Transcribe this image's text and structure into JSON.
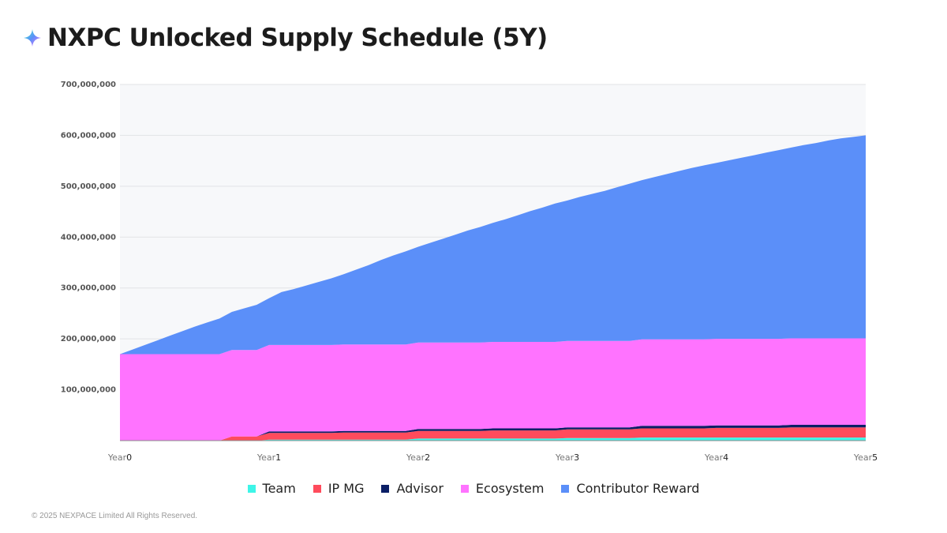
{
  "title": "NXPC Unlocked Supply Schedule (5Y)",
  "footer": "© 2025 NEXPACE Limited All Rights Reserved.",
  "chart_data": {
    "type": "area",
    "stacked": true,
    "title": "NXPC Unlocked Supply Schedule (5Y)",
    "xlabel": "",
    "ylabel": "",
    "xlim": [
      0,
      5
    ],
    "ylim": [
      0,
      700000000
    ],
    "grid": true,
    "legend_position": "bottom",
    "x_ticks": [
      {
        "prefix": "Year",
        "num": "0",
        "value": 0
      },
      {
        "prefix": "Year",
        "num": "1",
        "value": 1
      },
      {
        "prefix": "Year",
        "num": "2",
        "value": 2
      },
      {
        "prefix": "Year",
        "num": "3",
        "value": 3
      },
      {
        "prefix": "Year",
        "num": "4",
        "value": 4
      },
      {
        "prefix": "Year",
        "num": "5",
        "value": 5
      }
    ],
    "y_ticks": [
      {
        "label": "100,000,000",
        "value": 100000000
      },
      {
        "label": "200,000,000",
        "value": 200000000
      },
      {
        "label": "300,000,000",
        "value": 300000000
      },
      {
        "label": "400,000,000",
        "value": 400000000
      },
      {
        "label": "500,000,000",
        "value": 500000000
      },
      {
        "label": "600,000,000",
        "value": 600000000
      },
      {
        "label": "700,000,000",
        "value": 700000000
      }
    ],
    "x": [
      0,
      0.083,
      0.167,
      0.25,
      0.333,
      0.417,
      0.5,
      0.583,
      0.667,
      0.75,
      0.833,
      0.917,
      1,
      1.083,
      1.167,
      1.25,
      1.333,
      1.417,
      1.5,
      1.583,
      1.667,
      1.75,
      1.833,
      1.917,
      2,
      2.083,
      2.167,
      2.25,
      2.333,
      2.417,
      2.5,
      2.583,
      2.667,
      2.75,
      2.833,
      2.917,
      3,
      3.083,
      3.167,
      3.25,
      3.333,
      3.417,
      3.5,
      3.583,
      3.667,
      3.75,
      3.833,
      3.917,
      4,
      4.083,
      4.167,
      4.25,
      4.333,
      4.417,
      4.5,
      4.583,
      4.667,
      4.75,
      4.833,
      4.917,
      5
    ],
    "series": [
      {
        "name": "Team",
        "color": "#3ef5e8",
        "values": [
          0,
          0,
          0,
          0,
          0,
          0,
          0,
          0,
          0,
          0,
          0,
          0,
          2000000,
          2000000,
          2000000,
          2000000,
          2000000,
          2000000,
          2000000,
          2000000,
          2000000,
          2000000,
          2000000,
          2000000,
          4000000,
          4000000,
          4000000,
          4000000,
          4000000,
          4000000,
          4000000,
          4000000,
          4000000,
          4000000,
          4000000,
          4000000,
          5000000,
          5000000,
          5000000,
          5000000,
          5000000,
          5000000,
          6000000,
          6000000,
          6000000,
          6000000,
          6000000,
          6000000,
          6000000,
          6000000,
          6000000,
          6000000,
          6000000,
          6000000,
          6000000,
          6000000,
          6000000,
          6000000,
          6000000,
          6000000,
          6000000
        ]
      },
      {
        "name": "IP MG",
        "color": "#ff4b5c",
        "values": [
          0,
          0,
          0,
          0,
          0,
          0,
          0,
          0,
          0,
          8000000,
          8000000,
          8000000,
          13000000,
          13000000,
          13000000,
          13000000,
          13000000,
          13000000,
          14000000,
          14000000,
          14000000,
          14000000,
          14000000,
          14000000,
          15000000,
          15000000,
          15000000,
          15000000,
          15000000,
          15000000,
          16000000,
          16000000,
          16000000,
          16000000,
          16000000,
          16000000,
          17000000,
          17000000,
          17000000,
          17000000,
          17000000,
          17000000,
          18000000,
          18000000,
          18000000,
          18000000,
          18000000,
          18000000,
          19000000,
          19000000,
          19000000,
          19000000,
          19000000,
          19000000,
          20000000,
          20000000,
          20000000,
          20000000,
          20000000,
          20000000,
          20000000
        ]
      },
      {
        "name": "Advisor",
        "color": "#0b1f66",
        "values": [
          0,
          0,
          0,
          0,
          0,
          0,
          0,
          0,
          0,
          0,
          0,
          0,
          3000000,
          3000000,
          3000000,
          3000000,
          3000000,
          3000000,
          3000000,
          3000000,
          3000000,
          3000000,
          3000000,
          3000000,
          4000000,
          4000000,
          4000000,
          4000000,
          4000000,
          4000000,
          4000000,
          4000000,
          4000000,
          4000000,
          4000000,
          4000000,
          4000000,
          4000000,
          4000000,
          4000000,
          4000000,
          4000000,
          5000000,
          5000000,
          5000000,
          5000000,
          5000000,
          5000000,
          5000000,
          5000000,
          5000000,
          5000000,
          5000000,
          5000000,
          5000000,
          5000000,
          5000000,
          5000000,
          5000000,
          5000000,
          5000000
        ]
      },
      {
        "name": "Ecosystem",
        "color": "#ff73ff",
        "values": [
          170000000,
          170000000,
          170000000,
          170000000,
          170000000,
          170000000,
          170000000,
          170000000,
          170000000,
          170000000,
          170000000,
          170000000,
          170000000,
          170000000,
          170000000,
          170000000,
          170000000,
          170000000,
          170000000,
          170000000,
          170000000,
          170000000,
          170000000,
          170000000,
          170000000,
          170000000,
          170000000,
          170000000,
          170000000,
          170000000,
          170000000,
          170000000,
          170000000,
          170000000,
          170000000,
          170000000,
          170000000,
          170000000,
          170000000,
          170000000,
          170000000,
          170000000,
          170000000,
          170000000,
          170000000,
          170000000,
          170000000,
          170000000,
          170000000,
          170000000,
          170000000,
          170000000,
          170000000,
          170000000,
          170000000,
          170000000,
          170000000,
          170000000,
          170000000,
          170000000,
          170000000
        ]
      },
      {
        "name": "Contributor Reward",
        "color": "#5b8ff9",
        "values": [
          0,
          9000000,
          18000000,
          27000000,
          36000000,
          45000000,
          54000000,
          62000000,
          70000000,
          75000000,
          82000000,
          89000000,
          92000000,
          104000000,
          110000000,
          117000000,
          124000000,
          131000000,
          138000000,
          147000000,
          156000000,
          166000000,
          175000000,
          183000000,
          188000000,
          196000000,
          204000000,
          212000000,
          220000000,
          227000000,
          234000000,
          241000000,
          249000000,
          257000000,
          264000000,
          272000000,
          276000000,
          283000000,
          289000000,
          295000000,
          302000000,
          309000000,
          313000000,
          319000000,
          325000000,
          331000000,
          337000000,
          342000000,
          346000000,
          351000000,
          356000000,
          361000000,
          366000000,
          371000000,
          375000000,
          380000000,
          384000000,
          389000000,
          393000000,
          396000000,
          399000000
        ]
      }
    ],
    "plot_background": "#f7f8fa"
  }
}
